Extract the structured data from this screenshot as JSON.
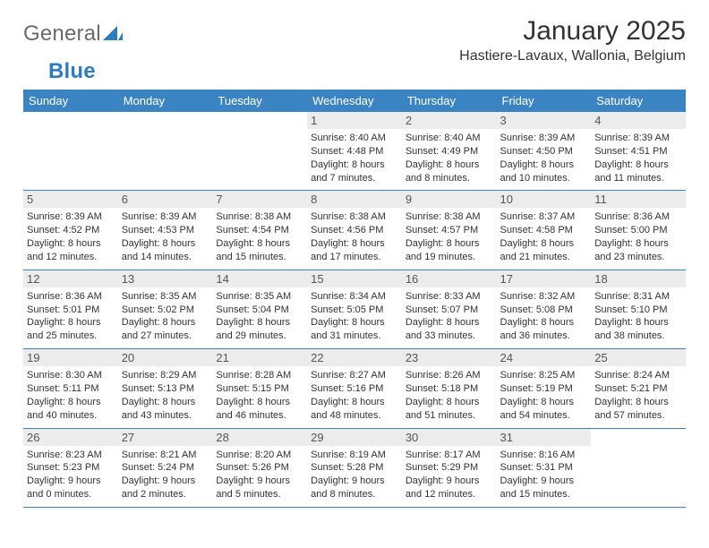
{
  "logo": {
    "word1": "General",
    "word2": "Blue"
  },
  "colors": {
    "header_bg": "#3b84c4",
    "header_fg": "#ffffff",
    "daynum_bg": "#ececec",
    "rule": "#3b84c4",
    "logo_gray": "#6b6b6b",
    "logo_blue": "#2d7bc0"
  },
  "title": "January 2025",
  "location": "Hastiere-Lavaux, Wallonia, Belgium",
  "day_headers": [
    "Sunday",
    "Monday",
    "Tuesday",
    "Wednesday",
    "Thursday",
    "Friday",
    "Saturday"
  ],
  "weeks": [
    [
      {
        "n": "",
        "sr": "",
        "ss": "",
        "dl1": "",
        "dl2": ""
      },
      {
        "n": "",
        "sr": "",
        "ss": "",
        "dl1": "",
        "dl2": ""
      },
      {
        "n": "",
        "sr": "",
        "ss": "",
        "dl1": "",
        "dl2": ""
      },
      {
        "n": "1",
        "sr": "Sunrise: 8:40 AM",
        "ss": "Sunset: 4:48 PM",
        "dl1": "Daylight: 8 hours",
        "dl2": "and 7 minutes."
      },
      {
        "n": "2",
        "sr": "Sunrise: 8:40 AM",
        "ss": "Sunset: 4:49 PM",
        "dl1": "Daylight: 8 hours",
        "dl2": "and 8 minutes."
      },
      {
        "n": "3",
        "sr": "Sunrise: 8:39 AM",
        "ss": "Sunset: 4:50 PM",
        "dl1": "Daylight: 8 hours",
        "dl2": "and 10 minutes."
      },
      {
        "n": "4",
        "sr": "Sunrise: 8:39 AM",
        "ss": "Sunset: 4:51 PM",
        "dl1": "Daylight: 8 hours",
        "dl2": "and 11 minutes."
      }
    ],
    [
      {
        "n": "5",
        "sr": "Sunrise: 8:39 AM",
        "ss": "Sunset: 4:52 PM",
        "dl1": "Daylight: 8 hours",
        "dl2": "and 12 minutes."
      },
      {
        "n": "6",
        "sr": "Sunrise: 8:39 AM",
        "ss": "Sunset: 4:53 PM",
        "dl1": "Daylight: 8 hours",
        "dl2": "and 14 minutes."
      },
      {
        "n": "7",
        "sr": "Sunrise: 8:38 AM",
        "ss": "Sunset: 4:54 PM",
        "dl1": "Daylight: 8 hours",
        "dl2": "and 15 minutes."
      },
      {
        "n": "8",
        "sr": "Sunrise: 8:38 AM",
        "ss": "Sunset: 4:56 PM",
        "dl1": "Daylight: 8 hours",
        "dl2": "and 17 minutes."
      },
      {
        "n": "9",
        "sr": "Sunrise: 8:38 AM",
        "ss": "Sunset: 4:57 PM",
        "dl1": "Daylight: 8 hours",
        "dl2": "and 19 minutes."
      },
      {
        "n": "10",
        "sr": "Sunrise: 8:37 AM",
        "ss": "Sunset: 4:58 PM",
        "dl1": "Daylight: 8 hours",
        "dl2": "and 21 minutes."
      },
      {
        "n": "11",
        "sr": "Sunrise: 8:36 AM",
        "ss": "Sunset: 5:00 PM",
        "dl1": "Daylight: 8 hours",
        "dl2": "and 23 minutes."
      }
    ],
    [
      {
        "n": "12",
        "sr": "Sunrise: 8:36 AM",
        "ss": "Sunset: 5:01 PM",
        "dl1": "Daylight: 8 hours",
        "dl2": "and 25 minutes."
      },
      {
        "n": "13",
        "sr": "Sunrise: 8:35 AM",
        "ss": "Sunset: 5:02 PM",
        "dl1": "Daylight: 8 hours",
        "dl2": "and 27 minutes."
      },
      {
        "n": "14",
        "sr": "Sunrise: 8:35 AM",
        "ss": "Sunset: 5:04 PM",
        "dl1": "Daylight: 8 hours",
        "dl2": "and 29 minutes."
      },
      {
        "n": "15",
        "sr": "Sunrise: 8:34 AM",
        "ss": "Sunset: 5:05 PM",
        "dl1": "Daylight: 8 hours",
        "dl2": "and 31 minutes."
      },
      {
        "n": "16",
        "sr": "Sunrise: 8:33 AM",
        "ss": "Sunset: 5:07 PM",
        "dl1": "Daylight: 8 hours",
        "dl2": "and 33 minutes."
      },
      {
        "n": "17",
        "sr": "Sunrise: 8:32 AM",
        "ss": "Sunset: 5:08 PM",
        "dl1": "Daylight: 8 hours",
        "dl2": "and 36 minutes."
      },
      {
        "n": "18",
        "sr": "Sunrise: 8:31 AM",
        "ss": "Sunset: 5:10 PM",
        "dl1": "Daylight: 8 hours",
        "dl2": "and 38 minutes."
      }
    ],
    [
      {
        "n": "19",
        "sr": "Sunrise: 8:30 AM",
        "ss": "Sunset: 5:11 PM",
        "dl1": "Daylight: 8 hours",
        "dl2": "and 40 minutes."
      },
      {
        "n": "20",
        "sr": "Sunrise: 8:29 AM",
        "ss": "Sunset: 5:13 PM",
        "dl1": "Daylight: 8 hours",
        "dl2": "and 43 minutes."
      },
      {
        "n": "21",
        "sr": "Sunrise: 8:28 AM",
        "ss": "Sunset: 5:15 PM",
        "dl1": "Daylight: 8 hours",
        "dl2": "and 46 minutes."
      },
      {
        "n": "22",
        "sr": "Sunrise: 8:27 AM",
        "ss": "Sunset: 5:16 PM",
        "dl1": "Daylight: 8 hours",
        "dl2": "and 48 minutes."
      },
      {
        "n": "23",
        "sr": "Sunrise: 8:26 AM",
        "ss": "Sunset: 5:18 PM",
        "dl1": "Daylight: 8 hours",
        "dl2": "and 51 minutes."
      },
      {
        "n": "24",
        "sr": "Sunrise: 8:25 AM",
        "ss": "Sunset: 5:19 PM",
        "dl1": "Daylight: 8 hours",
        "dl2": "and 54 minutes."
      },
      {
        "n": "25",
        "sr": "Sunrise: 8:24 AM",
        "ss": "Sunset: 5:21 PM",
        "dl1": "Daylight: 8 hours",
        "dl2": "and 57 minutes."
      }
    ],
    [
      {
        "n": "26",
        "sr": "Sunrise: 8:23 AM",
        "ss": "Sunset: 5:23 PM",
        "dl1": "Daylight: 9 hours",
        "dl2": "and 0 minutes."
      },
      {
        "n": "27",
        "sr": "Sunrise: 8:21 AM",
        "ss": "Sunset: 5:24 PM",
        "dl1": "Daylight: 9 hours",
        "dl2": "and 2 minutes."
      },
      {
        "n": "28",
        "sr": "Sunrise: 8:20 AM",
        "ss": "Sunset: 5:26 PM",
        "dl1": "Daylight: 9 hours",
        "dl2": "and 5 minutes."
      },
      {
        "n": "29",
        "sr": "Sunrise: 8:19 AM",
        "ss": "Sunset: 5:28 PM",
        "dl1": "Daylight: 9 hours",
        "dl2": "and 8 minutes."
      },
      {
        "n": "30",
        "sr": "Sunrise: 8:17 AM",
        "ss": "Sunset: 5:29 PM",
        "dl1": "Daylight: 9 hours",
        "dl2": "and 12 minutes."
      },
      {
        "n": "31",
        "sr": "Sunrise: 8:16 AM",
        "ss": "Sunset: 5:31 PM",
        "dl1": "Daylight: 9 hours",
        "dl2": "and 15 minutes."
      },
      {
        "n": "",
        "sr": "",
        "ss": "",
        "dl1": "",
        "dl2": ""
      }
    ]
  ]
}
